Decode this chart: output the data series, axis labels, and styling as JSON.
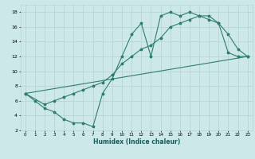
{
  "title": "",
  "xlabel": "Humidex (Indice chaleur)",
  "bg_color": "#cde8e8",
  "grid_color": "#b8d4d4",
  "line_color": "#2e7d6e",
  "xlim": [
    -0.5,
    23.5
  ],
  "ylim": [
    2,
    19
  ],
  "xticks": [
    0,
    1,
    2,
    3,
    4,
    5,
    6,
    7,
    8,
    9,
    10,
    11,
    12,
    13,
    14,
    15,
    16,
    17,
    18,
    19,
    20,
    21,
    22,
    23
  ],
  "yticks": [
    2,
    4,
    6,
    8,
    10,
    12,
    14,
    16,
    18
  ],
  "line1_x": [
    0,
    1,
    2,
    3,
    4,
    5,
    6,
    7,
    8,
    9,
    10,
    11,
    12,
    13,
    14,
    15,
    16,
    17,
    18,
    19,
    20,
    21,
    22,
    23
  ],
  "line1_y": [
    7.0,
    6.0,
    5.0,
    4.5,
    3.5,
    3.0,
    3.0,
    2.5,
    7.0,
    9.0,
    12.0,
    15.0,
    16.5,
    12.0,
    17.5,
    18.0,
    17.5,
    18.0,
    17.5,
    17.0,
    16.5,
    15.0,
    13.0,
    12.0
  ],
  "line2_x": [
    0,
    23
  ],
  "line2_y": [
    7.0,
    12.0
  ],
  "line3_x": [
    0,
    2,
    3,
    4,
    5,
    6,
    7,
    8,
    9,
    10,
    11,
    12,
    13,
    14,
    15,
    16,
    17,
    18,
    19,
    20,
    21,
    22,
    23
  ],
  "line3_y": [
    7.0,
    5.5,
    6.0,
    6.5,
    7.0,
    7.5,
    8.0,
    8.5,
    9.5,
    11.0,
    12.0,
    13.0,
    13.5,
    14.5,
    16.0,
    16.5,
    17.0,
    17.5,
    17.5,
    16.5,
    12.5,
    12.0,
    12.0
  ]
}
